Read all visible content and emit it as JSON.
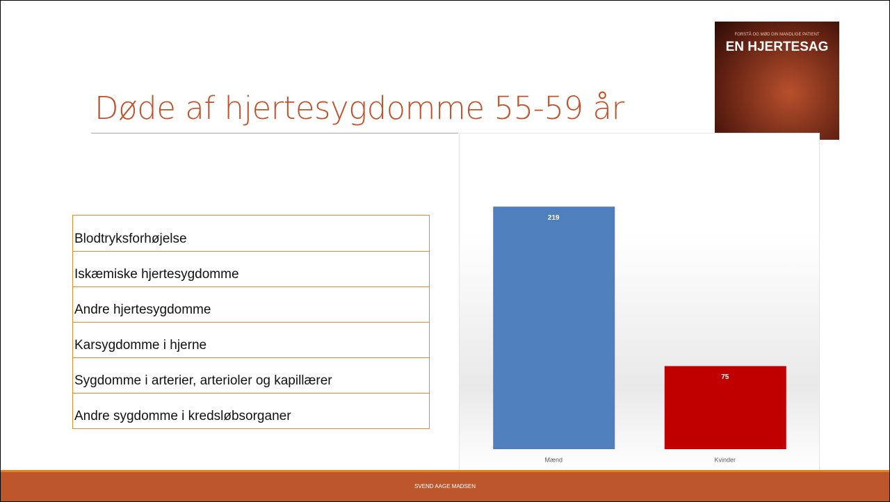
{
  "slide": {
    "title": "Døde af hjertesygdomme 55-59 år",
    "list": [
      "Blodtryksforhøjelse",
      "Iskæmiske hjertesygdomme",
      "Andre hjertesygdomme",
      "Karsygdomme i hjerne",
      "Sygdomme i arterier, arterioler og kapillærer",
      "Andre sygdomme i kredsløbsorganer"
    ],
    "image": {
      "subtitle": "FORSTÅ OG MØD DIN MANDLIGE PATIENT",
      "title": "EN HJERTESAG"
    },
    "footer": "SVEND AAGE MADSEN"
  },
  "chart_data": {
    "type": "bar",
    "categories": [
      "Mænd",
      "Kvinder"
    ],
    "values": [
      219,
      75
    ],
    "colors": [
      "#4f7fbd",
      "#c00000"
    ],
    "ylim": [
      0,
      280
    ]
  }
}
